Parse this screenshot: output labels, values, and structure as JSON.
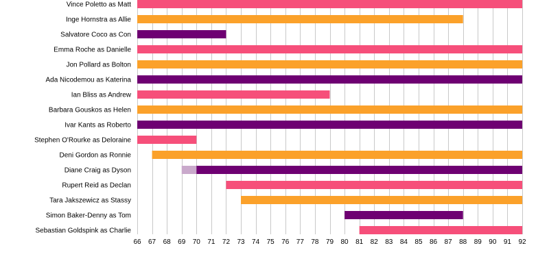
{
  "chart_data": {
    "type": "bar",
    "orientation": "horizontal-timeline",
    "x": {
      "min": 66,
      "max": 92,
      "tick_step": 1
    },
    "grid": true,
    "colors": {
      "pink": "#f64f7a",
      "orange": "#fba12a",
      "purple": "#6e0072",
      "lilac": "#c9a9cb"
    },
    "rows": [
      {
        "label": "Vince Poletto as Matt",
        "segments": [
          {
            "start": 66,
            "end": 92,
            "color": "pink"
          }
        ]
      },
      {
        "label": "Inge Hornstra as Allie",
        "segments": [
          {
            "start": 66,
            "end": 88,
            "color": "orange"
          }
        ]
      },
      {
        "label": "Salvatore Coco as Con",
        "segments": [
          {
            "start": 66,
            "end": 72,
            "color": "purple"
          }
        ]
      },
      {
        "label": "Emma Roche as Danielle",
        "segments": [
          {
            "start": 66,
            "end": 92,
            "color": "pink"
          }
        ]
      },
      {
        "label": "Jon Pollard as Bolton",
        "segments": [
          {
            "start": 66,
            "end": 92,
            "color": "orange"
          }
        ]
      },
      {
        "label": "Ada Nicodemou as Katerina",
        "segments": [
          {
            "start": 66,
            "end": 92,
            "color": "purple"
          }
        ]
      },
      {
        "label": "Ian Bliss as Andrew",
        "segments": [
          {
            "start": 66,
            "end": 79,
            "color": "pink"
          }
        ]
      },
      {
        "label": "Barbara Gouskos as Helen",
        "segments": [
          {
            "start": 66,
            "end": 92,
            "color": "orange"
          }
        ]
      },
      {
        "label": "Ivar Kants as Roberto",
        "segments": [
          {
            "start": 66,
            "end": 92,
            "color": "purple"
          }
        ]
      },
      {
        "label": "Stephen O'Rourke as Deloraine",
        "segments": [
          {
            "start": 66,
            "end": 70,
            "color": "pink"
          }
        ]
      },
      {
        "label": "Deni Gordon as Ronnie",
        "segments": [
          {
            "start": 67,
            "end": 92,
            "color": "orange"
          }
        ]
      },
      {
        "label": "Diane Craig as Dyson",
        "segments": [
          {
            "start": 69,
            "end": 70,
            "color": "lilac"
          },
          {
            "start": 70,
            "end": 92,
            "color": "purple"
          }
        ]
      },
      {
        "label": "Rupert Reid as Declan",
        "segments": [
          {
            "start": 72,
            "end": 92,
            "color": "pink"
          }
        ]
      },
      {
        "label": "Tara Jakszewicz as Stassy",
        "segments": [
          {
            "start": 73,
            "end": 92,
            "color": "orange"
          }
        ]
      },
      {
        "label": "Simon Baker-Denny as Tom",
        "segments": [
          {
            "start": 80,
            "end": 88,
            "color": "purple"
          }
        ]
      },
      {
        "label": "Sebastian Goldspink as Charlie",
        "segments": [
          {
            "start": 81,
            "end": 92,
            "color": "pink"
          }
        ]
      }
    ]
  }
}
